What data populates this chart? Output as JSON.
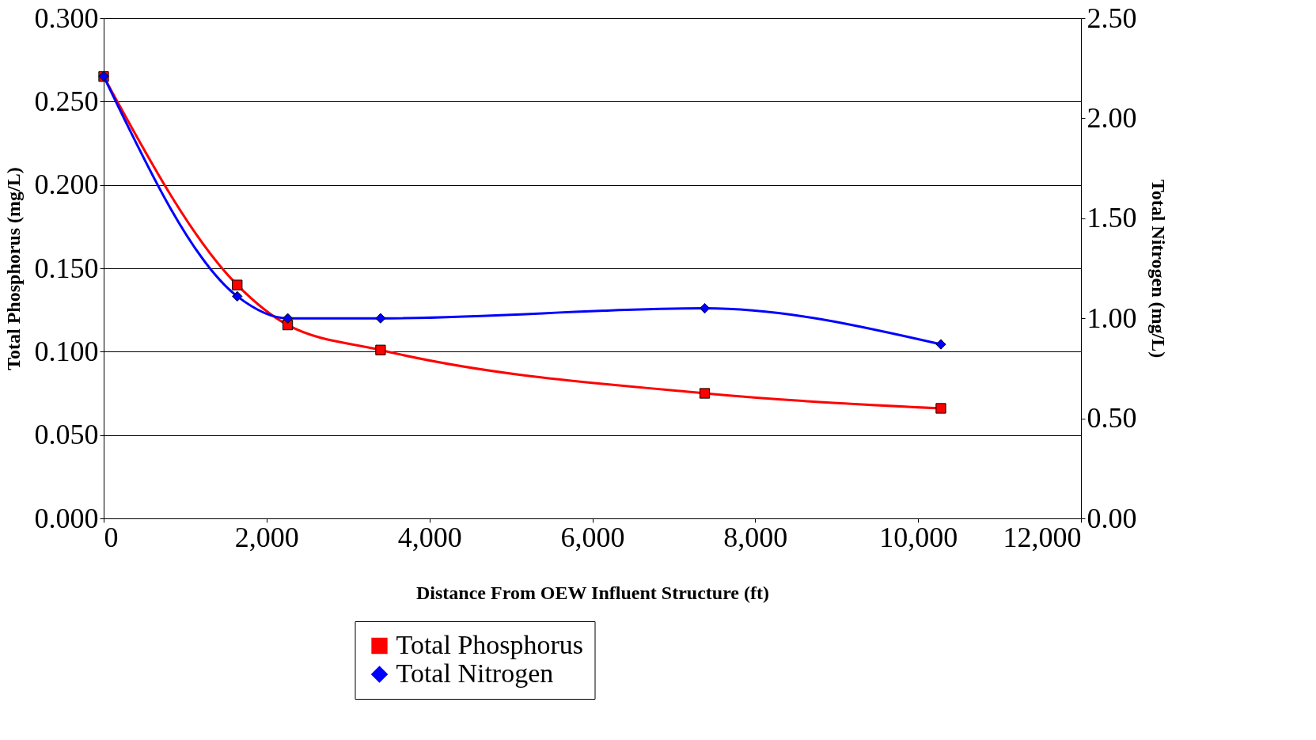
{
  "chart_data": {
    "type": "line",
    "xlabel": "Distance From OEW Influent Structure (ft)",
    "ylabel": "Total Phosphorus (mg/L)",
    "y2label": "Total Nitrogen (mg/L)",
    "series": [
      {
        "name": "Total Phosphorus",
        "color": "#ff0000",
        "marker": "square",
        "x": [
          0,
          1640,
          2260,
          3400,
          7380,
          10280
        ],
        "values": [
          0.265,
          0.14,
          0.116,
          0.101,
          0.075,
          0.066
        ]
      },
      {
        "name": "Total Nitrogen",
        "color": "#0000ff",
        "marker": "diamond",
        "axis": "y2",
        "x": [
          0,
          1640,
          2260,
          3400,
          7380,
          10280
        ],
        "values": [
          2.21,
          1.11,
          1.0,
          1.0,
          1.05,
          0.87
        ]
      }
    ],
    "xlim": [
      0,
      12000
    ],
    "xticks": [
      0,
      {
        "value": 2000,
        "label": "2,000"
      },
      {
        "value": 4000,
        "label": "4,000"
      },
      {
        "value": 6000,
        "label": "6,000"
      },
      {
        "value": 8000,
        "label": "8,000"
      },
      {
        "value": 10000,
        "label": "10,000"
      },
      {
        "value": 12000,
        "label": "12,000"
      }
    ],
    "ylim": [
      0,
      0.3
    ],
    "yticks": [
      {
        "value": 0,
        "label": "0.000"
      },
      {
        "value": 0.05,
        "label": "0.050"
      },
      {
        "value": 0.1,
        "label": "0.100"
      },
      {
        "value": 0.15,
        "label": "0.150"
      },
      {
        "value": 0.2,
        "label": "0.200"
      },
      {
        "value": 0.25,
        "label": "0.250"
      },
      {
        "value": 0.3,
        "label": "0.300"
      }
    ],
    "y2lim": [
      0,
      2.5
    ],
    "y2ticks": [
      {
        "value": 0,
        "label": "0.00"
      },
      {
        "value": 0.5,
        "label": "0.50"
      },
      {
        "value": 1.0,
        "label": "1.00"
      },
      {
        "value": 1.5,
        "label": "1.50"
      },
      {
        "value": 2.0,
        "label": "2.00"
      },
      {
        "value": 2.5,
        "label": "2.50"
      }
    ],
    "grid": "y",
    "legend": "bottom",
    "line_style": "solid"
  }
}
